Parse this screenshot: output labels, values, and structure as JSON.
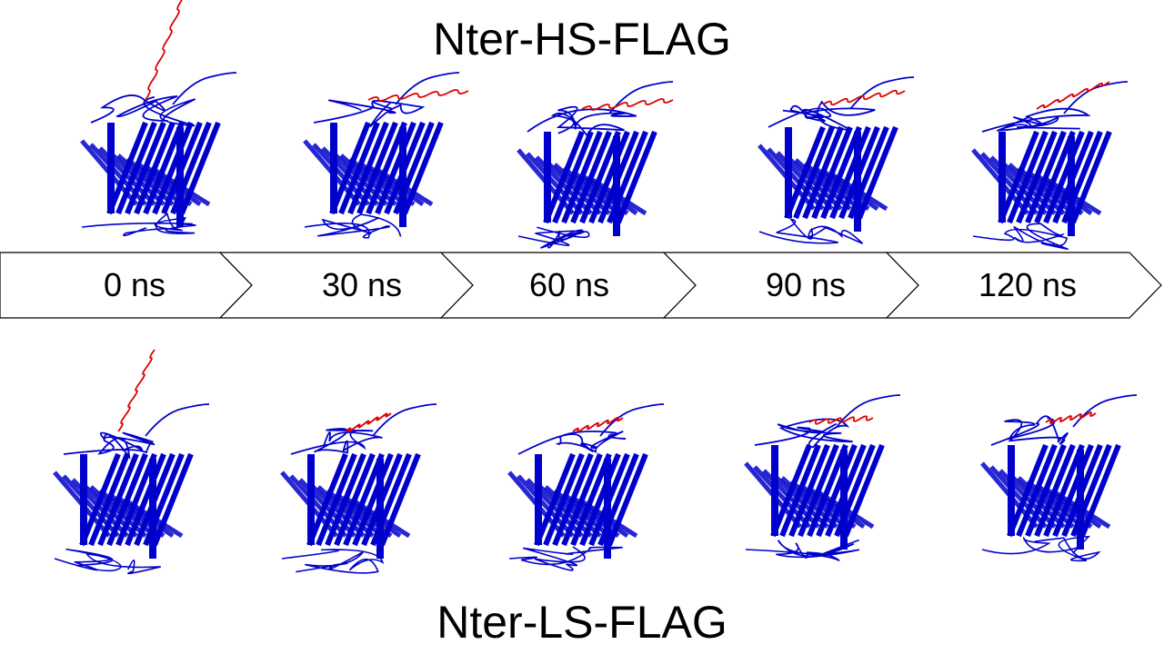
{
  "top_title": "Nter-HS-FLAG",
  "bottom_title": "Nter-LS-FLAG",
  "timeline": [
    "0 ns",
    "30 ns",
    "60 ns",
    "90 ns",
    "120 ns"
  ],
  "colors": {
    "protein": "#0000cc",
    "flag_tag": "#dd0000",
    "arrow_stroke": "#000000"
  }
}
